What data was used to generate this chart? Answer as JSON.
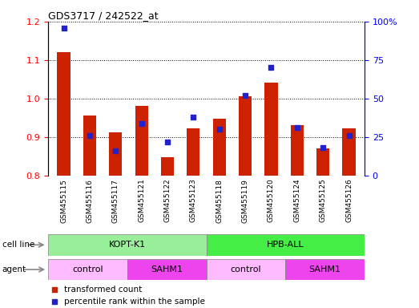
{
  "title": "GDS3717 / 242522_at",
  "samples": [
    "GSM455115",
    "GSM455116",
    "GSM455117",
    "GSM455121",
    "GSM455122",
    "GSM455123",
    "GSM455118",
    "GSM455119",
    "GSM455120",
    "GSM455124",
    "GSM455125",
    "GSM455126"
  ],
  "transformed_count": [
    1.12,
    0.955,
    0.912,
    0.98,
    0.848,
    0.922,
    0.948,
    1.005,
    1.042,
    0.932,
    0.87,
    0.922
  ],
  "percentile_rank": [
    96,
    26,
    16,
    34,
    22,
    38,
    30,
    52,
    70,
    31,
    18,
    26
  ],
  "bar_color": "#cc2200",
  "dot_color": "#2222cc",
  "ylim_left": [
    0.8,
    1.2
  ],
  "ylim_right": [
    0,
    100
  ],
  "yticks_left": [
    0.8,
    0.9,
    1.0,
    1.1,
    1.2
  ],
  "yticks_right": [
    0,
    25,
    50,
    75,
    100
  ],
  "ytick_right_labels": [
    "0",
    "25",
    "50",
    "75",
    "100%"
  ],
  "cell_line_groups": [
    {
      "label": "KOPT-K1",
      "start": 0,
      "end": 6,
      "color": "#99ee99"
    },
    {
      "label": "HPB-ALL",
      "start": 6,
      "end": 12,
      "color": "#44ee44"
    }
  ],
  "agent_groups": [
    {
      "label": "control",
      "start": 0,
      "end": 3,
      "color": "#ffbbff"
    },
    {
      "label": "SAHM1",
      "start": 3,
      "end": 6,
      "color": "#ee44ee"
    },
    {
      "label": "control",
      "start": 6,
      "end": 9,
      "color": "#ffbbff"
    },
    {
      "label": "SAHM1",
      "start": 9,
      "end": 12,
      "color": "#ee44ee"
    }
  ],
  "legend_items": [
    {
      "label": "transformed count",
      "color": "#cc2200"
    },
    {
      "label": "percentile rank within the sample",
      "color": "#2222cc"
    }
  ],
  "cell_line_label": "cell line",
  "agent_label": "agent",
  "bar_width": 0.5,
  "figsize": [
    5.23,
    3.84
  ],
  "dpi": 100
}
